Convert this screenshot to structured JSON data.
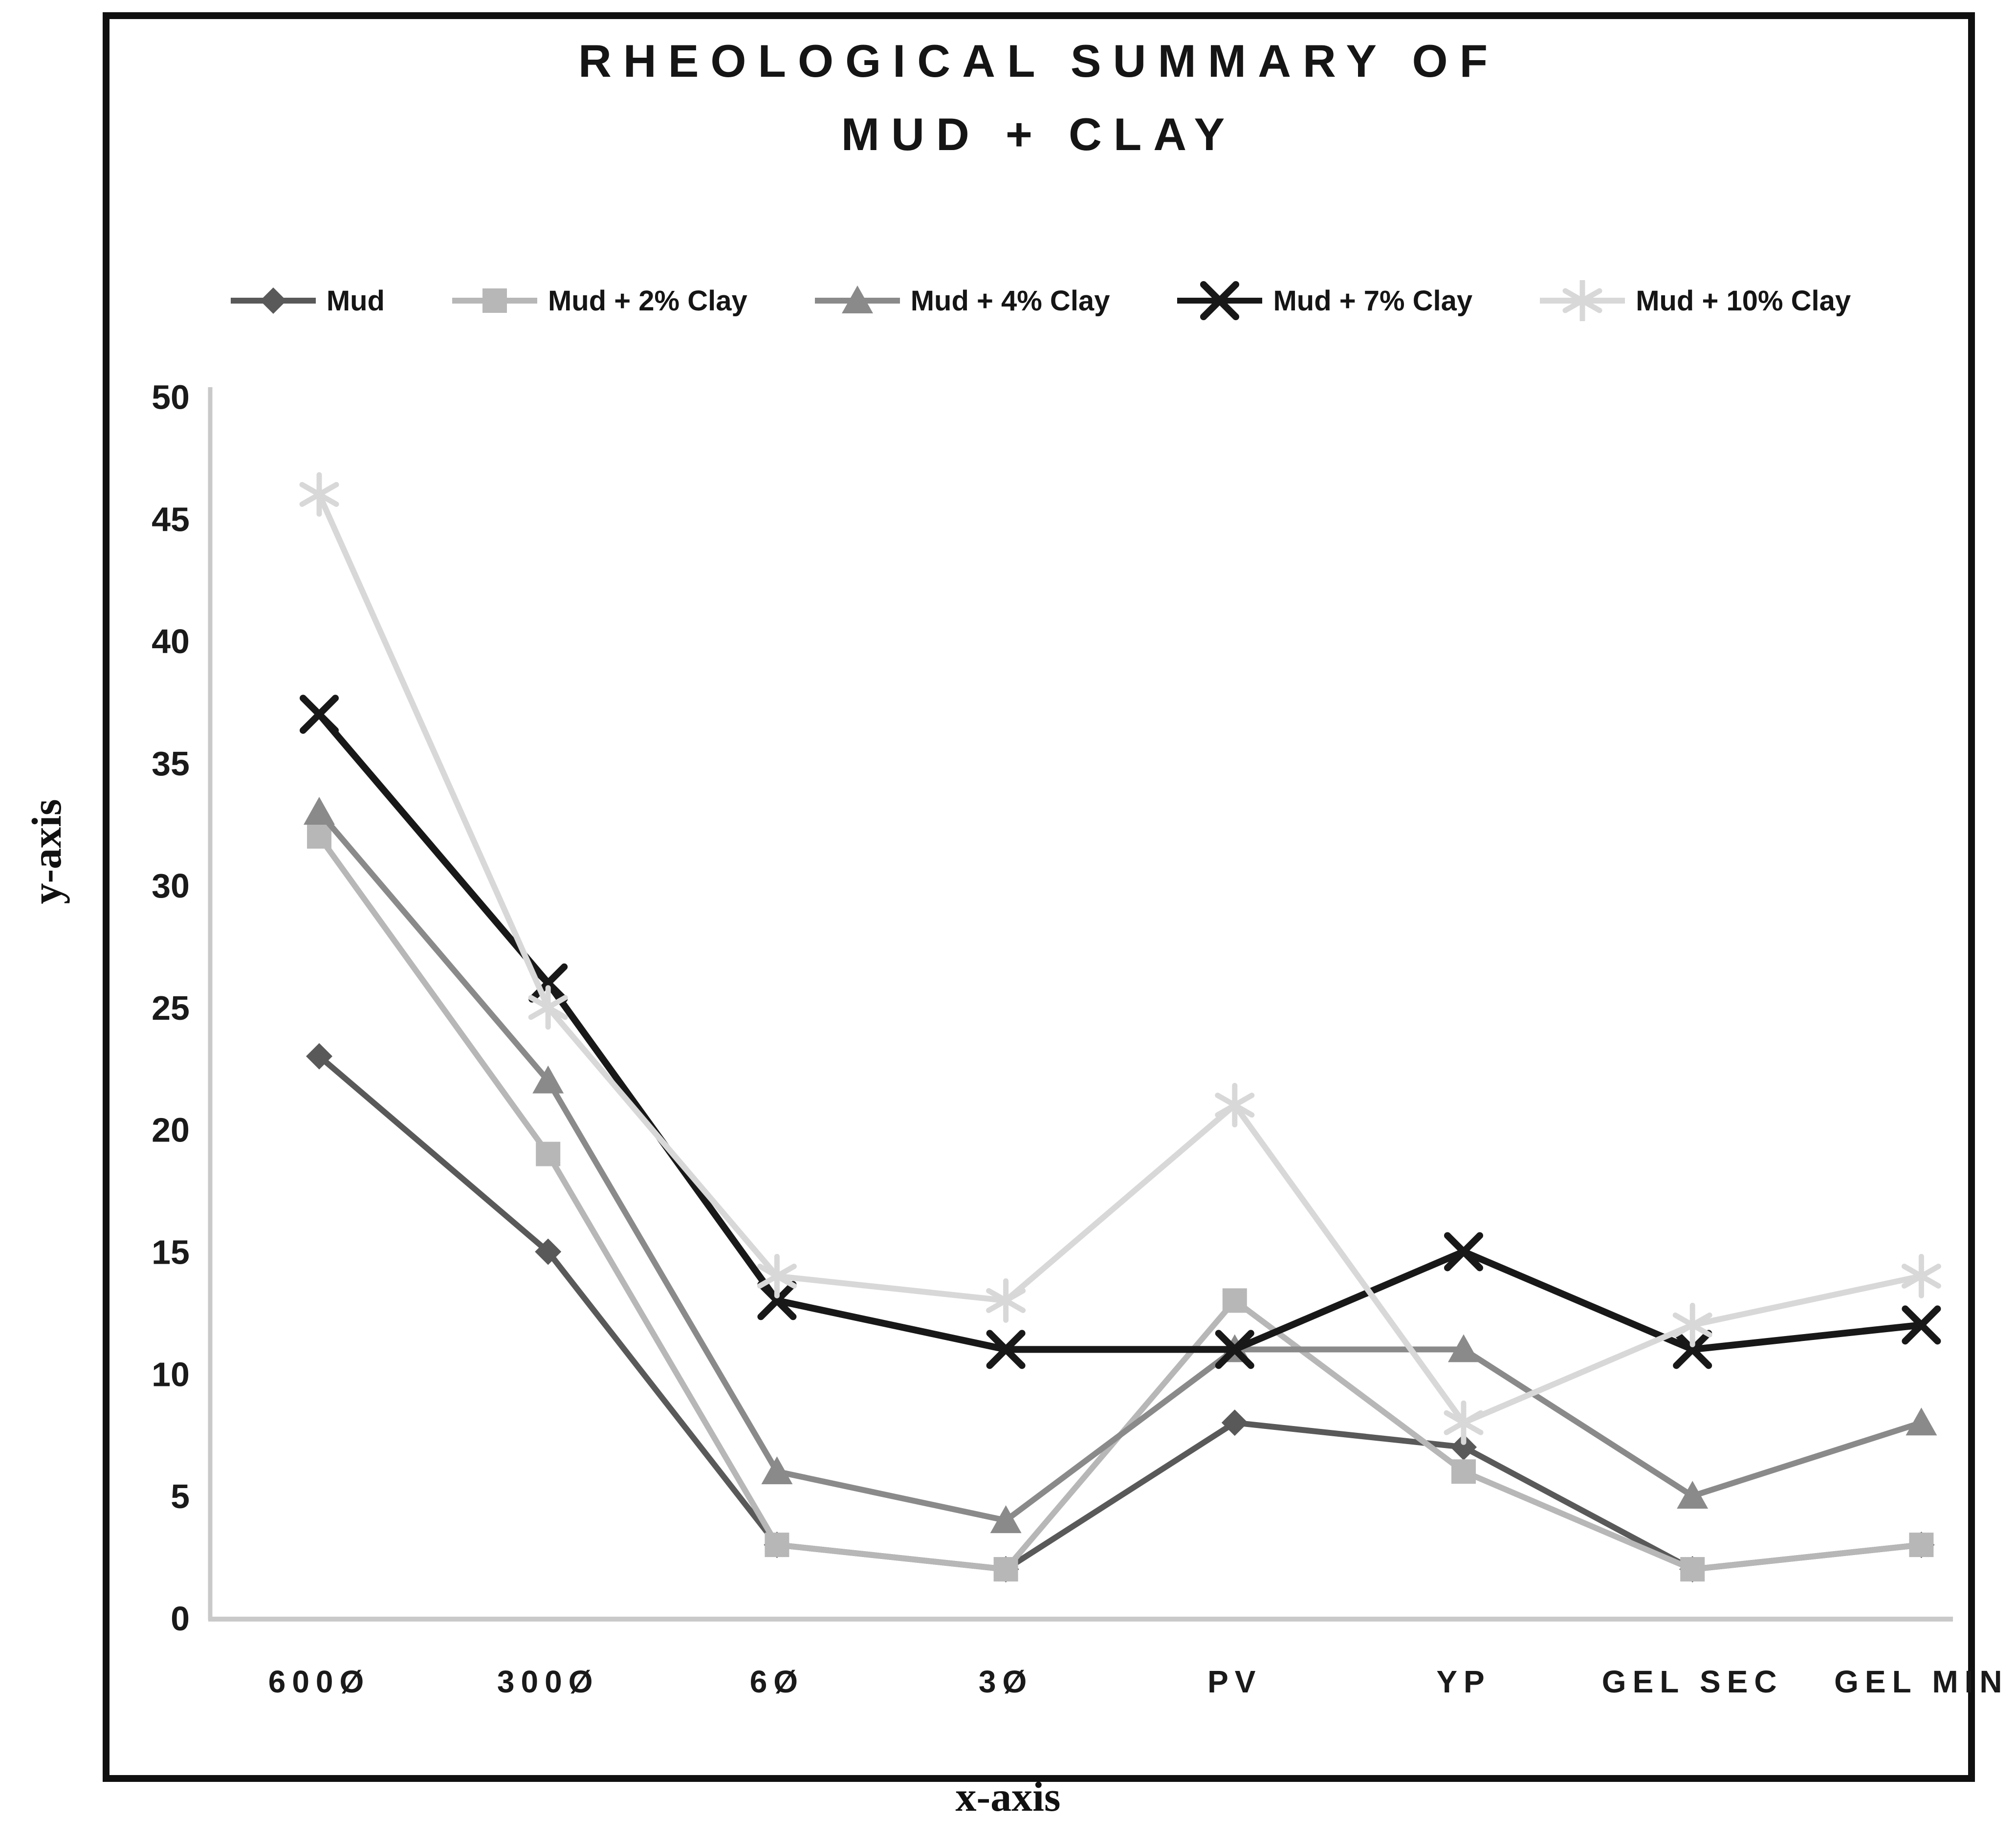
{
  "figure": {
    "title_line1": "RHEOLOGICAL SUMMARY OF",
    "title_line2": "MUD + CLAY",
    "x_axis_label": "x-axis",
    "y_axis_label": "y-axis",
    "text_color": "#1a1a1a",
    "axis_color": "#c9c9c9",
    "frame_color": "#101010"
  },
  "chart_data": {
    "type": "line",
    "title": "RHEOLOGICAL SUMMARY OF MUD + CLAY",
    "xlabel": "x-axis",
    "ylabel": "y-axis",
    "categories": [
      "600Ø",
      "300Ø",
      "6Ø",
      "3Ø",
      "PV",
      "YP",
      "GEL SEC",
      "GEL MIN"
    ],
    "ylim": [
      0,
      50
    ],
    "ytick_step": 5,
    "grid": false,
    "legend_position": "top",
    "series": [
      {
        "name": "Mud",
        "marker": "diamond",
        "color": "#595959",
        "values": [
          23,
          15,
          3,
          2,
          8,
          7,
          2,
          3
        ]
      },
      {
        "name": "Mud + 2% Clay",
        "marker": "square",
        "color": "#b7b7b7",
        "values": [
          32,
          19,
          3,
          2,
          13,
          6,
          2,
          3
        ]
      },
      {
        "name": "Mud + 4% Clay",
        "marker": "triangle",
        "color": "#8a8a8a",
        "values": [
          33,
          22,
          6,
          4,
          11,
          11,
          5,
          8
        ]
      },
      {
        "name": "Mud + 7% Clay",
        "marker": "x",
        "color": "#181818",
        "values": [
          37,
          26,
          13,
          11,
          11,
          15,
          11,
          12
        ]
      },
      {
        "name": "Mud + 10% Clay",
        "marker": "star",
        "color": "#d8d8d8",
        "values": [
          46,
          25,
          14,
          13,
          21,
          8,
          12,
          14
        ]
      }
    ]
  }
}
